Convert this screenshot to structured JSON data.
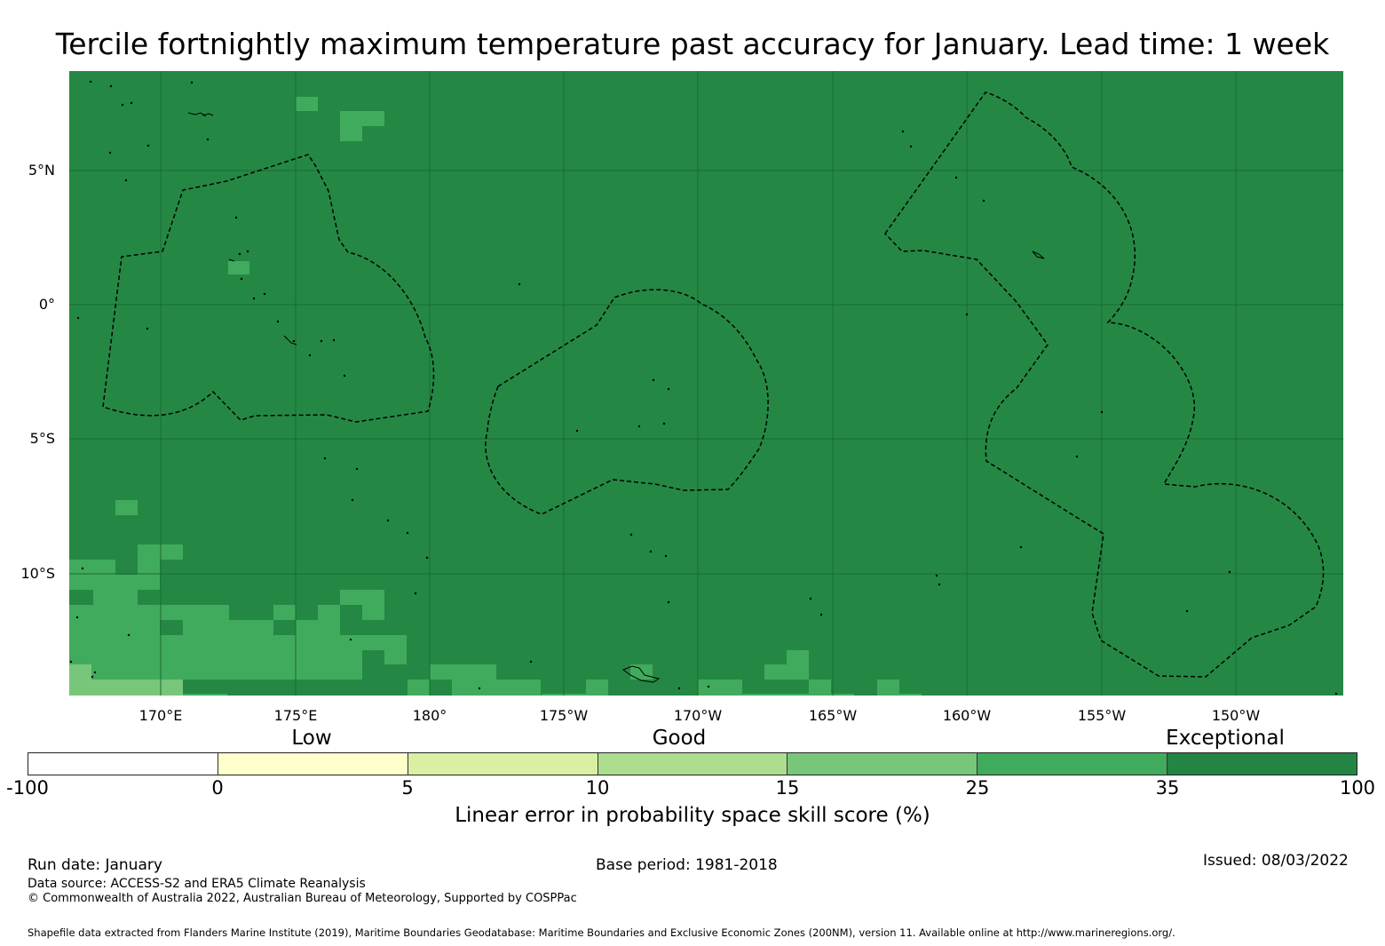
{
  "title": "Tercile fortnightly maximum temperature past accuracy for January. Lead time: 1 week",
  "map": {
    "lon_labels": [
      "170°E",
      "175°E",
      "180°",
      "175°W",
      "170°W",
      "165°W",
      "160°W",
      "155°W",
      "150°W"
    ],
    "lat_labels": [
      "5°N",
      "0°",
      "5°S",
      "10°S"
    ],
    "colors": {
      "ocean": "#248844",
      "grid": "#1a6a33",
      "coast": "#000000"
    }
  },
  "legend": {
    "categories": [
      "Low",
      "Good",
      "Exceptional"
    ],
    "bins": [
      {
        "from": -100,
        "to": 0,
        "color": "#ffffff"
      },
      {
        "from": 0,
        "to": 5,
        "color": "#ffffcc"
      },
      {
        "from": 5,
        "to": 10,
        "color": "#d9f0a3"
      },
      {
        "from": 10,
        "to": 15,
        "color": "#addd8e"
      },
      {
        "from": 15,
        "to": 25,
        "color": "#78c679"
      },
      {
        "from": 25,
        "to": 35,
        "color": "#41ab5d"
      },
      {
        "from": 35,
        "to": 100,
        "color": "#238443"
      }
    ],
    "ticks": [
      "-100",
      "0",
      "5",
      "10",
      "15",
      "25",
      "35",
      "100"
    ],
    "label": "Linear error in probability space skill score (%)"
  },
  "footer": {
    "run_date": "Run date: January",
    "base_period": "Base period: 1981-2018",
    "issued": "Issued: 08/03/2022",
    "data_source": "Data source: ACCESS-S2 and ERA5 Climate Reanalysis",
    "copyright": "© Commonwealth of Australia 2022, Australian Bureau of Meteorology, Supported by COSPPac",
    "shapefile": "Shapefile data extracted from Flanders Marine Institute (2019), Maritime Boundaries Geodatabase: Maritime Boundaries and Exclusive Economic Zones (200NM), version 11. Available online at http://www.marineregions.org/."
  }
}
